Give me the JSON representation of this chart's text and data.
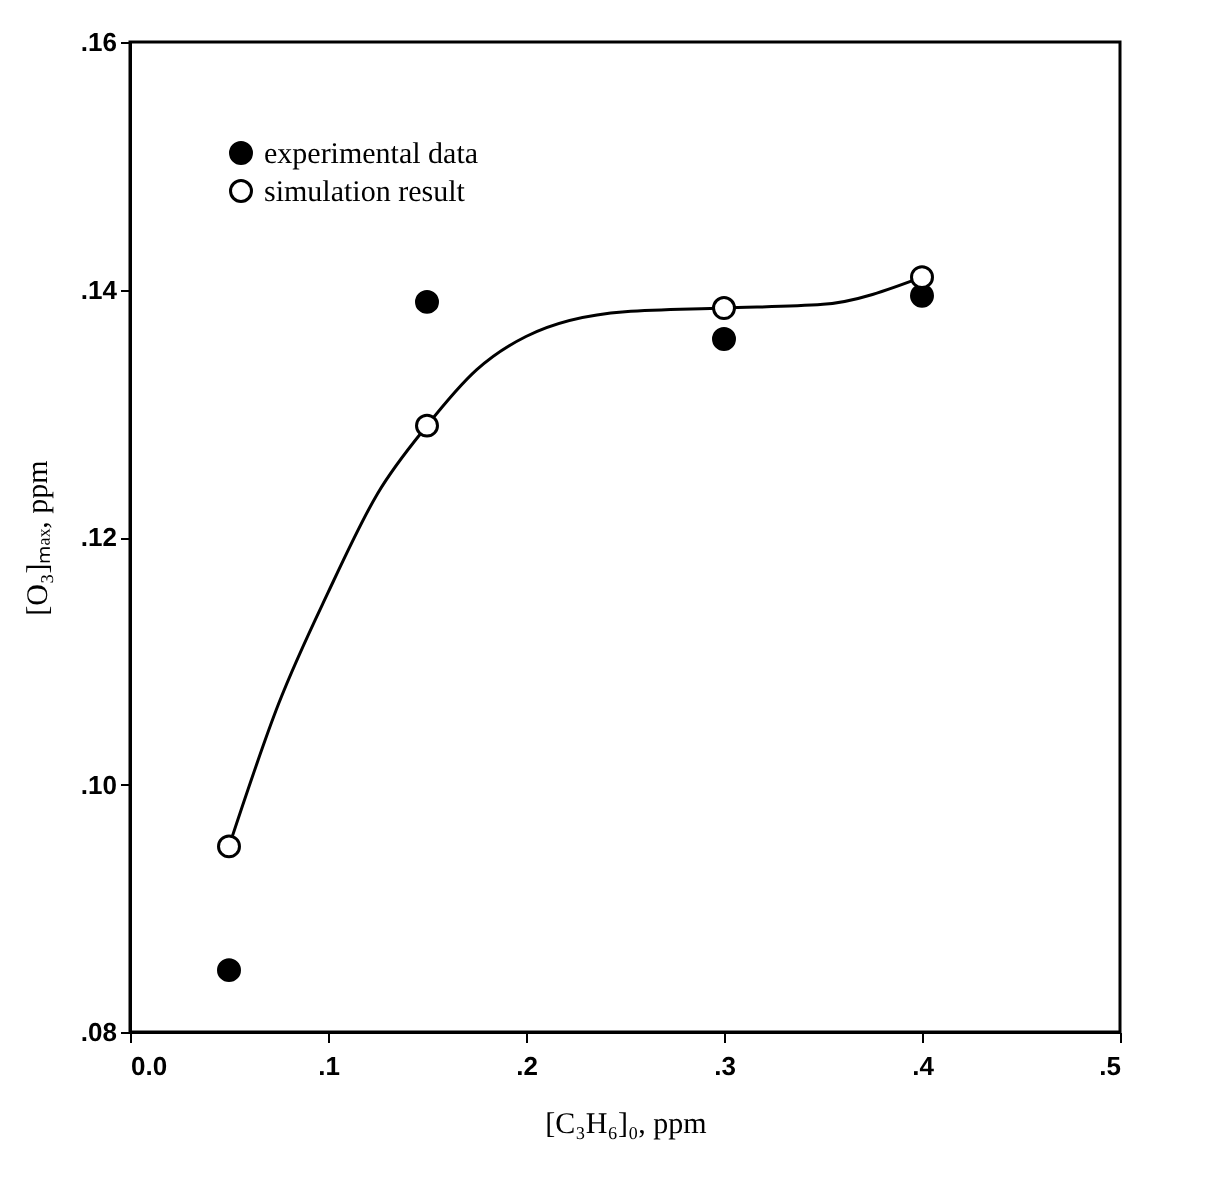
{
  "chart_data": {
    "type": "scatter",
    "xlabel": "[C₃H₆]₀, ppm",
    "ylabel": "[O₃]ₘₐₓ, ppm",
    "xlim": [
      0.0,
      0.5
    ],
    "ylim": [
      0.08,
      0.16
    ],
    "xticks": [
      {
        "value": 0.0,
        "label": "0.0"
      },
      {
        "value": 0.1,
        "label": ".1"
      },
      {
        "value": 0.2,
        "label": ".2"
      },
      {
        "value": 0.3,
        "label": ".3"
      },
      {
        "value": 0.4,
        "label": ".4"
      },
      {
        "value": 0.5,
        "label": ".5"
      }
    ],
    "yticks": [
      {
        "value": 0.08,
        "label": ".08"
      },
      {
        "value": 0.1,
        "label": ".10"
      },
      {
        "value": 0.12,
        "label": ".12"
      },
      {
        "value": 0.14,
        "label": ".14"
      },
      {
        "value": 0.16,
        "label": ".16"
      }
    ],
    "grid": false,
    "legend": "top left",
    "series": [
      {
        "name": "experimental data",
        "marker": "circle",
        "color": "#000000",
        "x": [
          0.05,
          0.15,
          0.3,
          0.4
        ],
        "values": [
          0.085,
          0.139,
          0.136,
          0.1395
        ]
      },
      {
        "name": "simulation result",
        "marker": "circle",
        "color": "#000000",
        "x": [
          0.05,
          0.15,
          0.3,
          0.4
        ],
        "values": [
          0.095,
          0.129,
          0.1385,
          0.141
        ]
      },
      {
        "type": "line",
        "marker": "none",
        "line_style": "solid",
        "color": "#000000",
        "x": [
          0.05,
          0.075,
          0.1,
          0.125,
          0.15,
          0.175,
          0.2,
          0.25,
          0.3,
          0.35,
          0.4
        ],
        "values": [
          0.095,
          0.1065,
          0.1155,
          0.1235,
          0.129,
          0.1335,
          0.1362,
          0.1382,
          0.1385,
          0.1388,
          0.141
        ]
      }
    ]
  }
}
